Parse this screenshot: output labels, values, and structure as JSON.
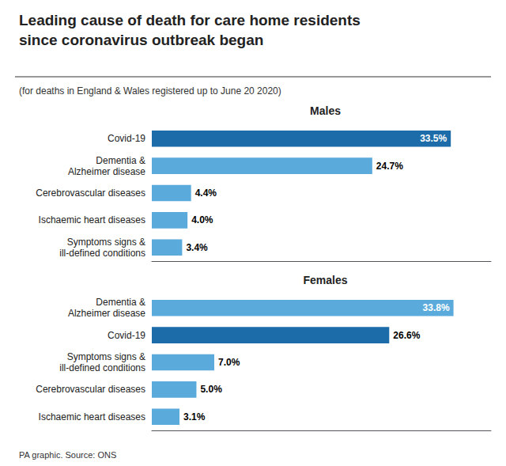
{
  "title": "Leading cause of death for care home residents\nsince coronavirus outbreak began",
  "subtitle": "(for deaths in England & Wales registered up to June 20 2020)",
  "annotations": [
    "PA graphic. Source: ONS"
  ],
  "chart_data": [
    {
      "type": "bar",
      "title": "Males",
      "orientation": "horizontal",
      "categories": [
        "Covid-19",
        "Dementia &\nAlzheimer disease",
        "Cerebrovascular diseases",
        "Ischaemic heart diseases",
        "Symptoms signs &\nill-defined conditions"
      ],
      "values": [
        33.5,
        24.7,
        4.4,
        4.0,
        3.4
      ],
      "value_labels": [
        "33.5%",
        "24.7%",
        "4.4%",
        "4.0%",
        "3.4%"
      ],
      "colors": [
        "#1b6ca8",
        "#5aabdb",
        "#5aabdb",
        "#5aabdb",
        "#5aabdb"
      ],
      "xlim": [
        0,
        38
      ],
      "xticks": [],
      "tick_labels": "y",
      "grid": false,
      "data_labels": true
    },
    {
      "type": "bar",
      "title": "Females",
      "orientation": "horizontal",
      "categories": [
        "Dementia &\nAlzheimer disease",
        "Covid-19",
        "Symptoms signs &\nill-defined conditions",
        "Cerebrovascular diseases",
        "Ischaemic heart diseases"
      ],
      "values": [
        33.8,
        26.6,
        7.0,
        5.0,
        3.1
      ],
      "value_labels": [
        "33.8%",
        "26.6%",
        "7.0%",
        "5.0%",
        "3.1%"
      ],
      "colors": [
        "#5aabdb",
        "#1b6ca8",
        "#5aabdb",
        "#5aabdb",
        "#5aabdb"
      ],
      "xlim": [
        0,
        38
      ],
      "xticks": [],
      "tick_labels": "y",
      "grid": false,
      "data_labels": true
    }
  ]
}
